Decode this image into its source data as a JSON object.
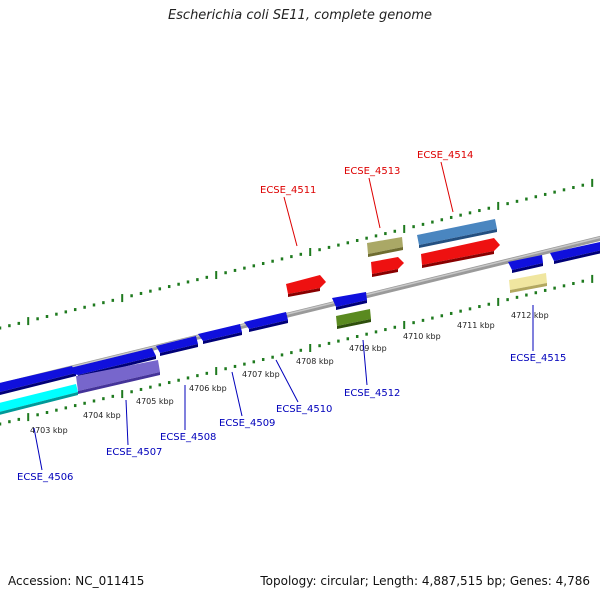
{
  "title": "Escherichia coli SE11, complete genome",
  "footer": {
    "accession": "Accession: NC_011415",
    "topology": "Topology: circular; Length: 4,887,515 bp; Genes: 4,786"
  },
  "colors": {
    "backbone": "#8c8c8c",
    "tick": "#1e7a1e",
    "label_forward": "#dd0000",
    "label_reverse": "#0000bb",
    "gene_blue": "#1010dd",
    "gene_red": "#ee1111",
    "gene_cyan": "#00ffff",
    "gene_slateblue": "#7766cc",
    "gene_olive": "#aaa866",
    "gene_steelblue": "#4a86c0",
    "gene_green": "#5a8a20",
    "gene_khaki": "#f0e6a0"
  },
  "scale_labels": [
    "4703 kbp",
    "4704 kbp",
    "4705 kbp",
    "4706 kbp",
    "4707 kbp",
    "4708 kbp",
    "4709 kbp",
    "4710 kbp",
    "4711 kbp",
    "4712 kbp"
  ],
  "gene_labels": [
    {
      "name": "ECSE_4506",
      "strand": "reverse"
    },
    {
      "name": "ECSE_4507",
      "strand": "reverse"
    },
    {
      "name": "ECSE_4508",
      "strand": "reverse"
    },
    {
      "name": "ECSE_4509",
      "strand": "reverse"
    },
    {
      "name": "ECSE_4510",
      "strand": "reverse"
    },
    {
      "name": "ECSE_4511",
      "strand": "forward"
    },
    {
      "name": "ECSE_4512",
      "strand": "reverse"
    },
    {
      "name": "ECSE_4513",
      "strand": "forward"
    },
    {
      "name": "ECSE_4514",
      "strand": "forward"
    },
    {
      "name": "ECSE_4515",
      "strand": "reverse"
    }
  ]
}
